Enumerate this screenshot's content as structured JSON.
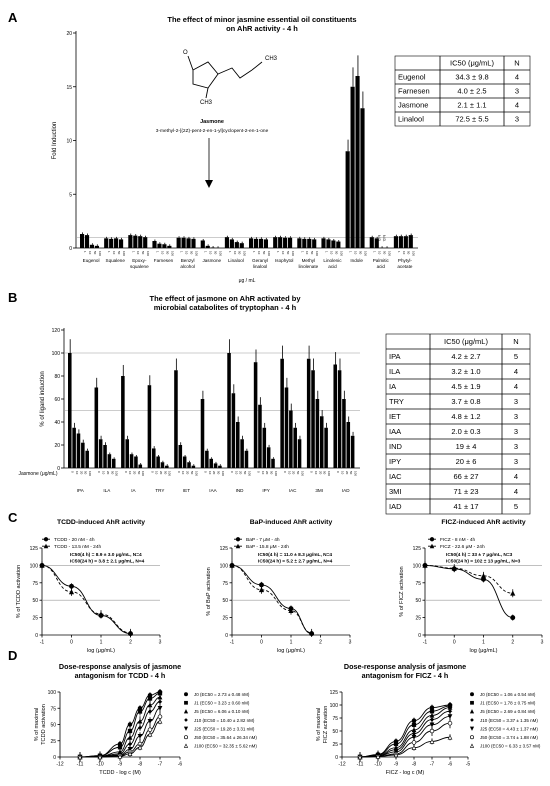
{
  "panels": {
    "A": "A",
    "B": "B",
    "C": "C",
    "D": "D"
  },
  "chart_data": [
    {
      "type": "bar",
      "panel": "A",
      "title": "The effect of minor jasmine essential oil constituents on AhR activity - 4 h",
      "title_lines": [
        "The effect of minor jasmine essential oil constituents",
        "on AhR activity - 4 h"
      ],
      "ylabel": "Fold Induction",
      "xlabel": "μg / mL",
      "ylim": [
        0,
        20
      ],
      "yticks": [
        0,
        5,
        10,
        15,
        20
      ],
      "reference_lines": [
        1.0
      ],
      "dose_labels": [
        "1",
        "10",
        "50",
        "100"
      ],
      "groups": [
        {
          "name": "Eugenol",
          "values": [
            1.3,
            1.2,
            0.3,
            0.2
          ]
        },
        {
          "name": "Squalene",
          "values": [
            0.9,
            0.85,
            0.9,
            0.8
          ]
        },
        {
          "name": "Epoxy-squalene",
          "values": [
            1.2,
            1.15,
            1.1,
            1.0
          ]
        },
        {
          "name": "Farnesen",
          "values": [
            0.65,
            0.4,
            0.35,
            0.2
          ]
        },
        {
          "name": "Benzyl alcohol",
          "values": [
            0.95,
            0.95,
            0.9,
            0.85
          ]
        },
        {
          "name": "Jasmone",
          "values": [
            0.7,
            0.2,
            0.05,
            0.02
          ]
        },
        {
          "name": "Linalool",
          "values": [
            1.0,
            0.8,
            0.55,
            0.45
          ]
        },
        {
          "name": "Geranyl linalool",
          "values": [
            0.9,
            0.85,
            0.85,
            0.8
          ]
        },
        {
          "name": "Isophytol",
          "values": [
            1.0,
            1.0,
            0.95,
            0.95
          ]
        },
        {
          "name": "Methyl linolenate",
          "values": [
            0.9,
            0.85,
            0.85,
            0.8
          ]
        },
        {
          "name": "Linolenic acid",
          "values": [
            0.9,
            0.8,
            0.7,
            0.6
          ]
        },
        {
          "name": "Indole",
          "values": [
            9.0,
            15.0,
            16.0,
            13.0
          ]
        },
        {
          "name": "Palmitic acid",
          "values": [
            1.0,
            0.9,
            0.02,
            0.02
          ]
        },
        {
          "name": "Phytyl-acetate",
          "values": [
            1.1,
            1.1,
            1.1,
            1.2
          ]
        }
      ],
      "annotations": [
        "N.D.",
        "N.D.",
        "Jasmone",
        "3-methyl-2-[(2Z)-pent-2-en-1-yl]cyclopent-2-en-1-one",
        "CH3",
        "O"
      ],
      "table": {
        "headers": [
          "",
          "IC50 (μg/mL)",
          "N"
        ],
        "rows": [
          [
            "Eugenol",
            "34.3 ± 9.8",
            "4"
          ],
          [
            "Farnesen",
            "4.0 ± 2.5",
            "3"
          ],
          [
            "Jasmone",
            "2.1 ± 1.1",
            "4"
          ],
          [
            "Linalool",
            "72.5 ± 5.5",
            "3"
          ]
        ]
      }
    },
    {
      "type": "bar",
      "panel": "B",
      "title": "The effect of jasmone on AhR activated by microbial catabolites of tryptophan - 4 h",
      "title_lines": [
        "The effect of jasmone on AhR activated by",
        "microbial catabolites of tryptophan - 4 h"
      ],
      "ylabel": "% of ligand induction",
      "xlabel": "Jasmone (μg/mL)",
      "ylim": [
        0,
        120
      ],
      "yticks": [
        0,
        20,
        40,
        60,
        80,
        100,
        120
      ],
      "reference_lines": [
        100,
        50
      ],
      "dose_labels": [
        "0",
        "10",
        "20",
        "50",
        "100"
      ],
      "groups": [
        {
          "name": "IPA",
          "values": [
            100,
            35,
            30,
            22,
            15
          ]
        },
        {
          "name": "ILA",
          "values": [
            70,
            25,
            20,
            12,
            8
          ]
        },
        {
          "name": "IA",
          "values": [
            80,
            25,
            12,
            10,
            3
          ]
        },
        {
          "name": "TRY",
          "values": [
            72,
            17,
            10,
            5,
            2
          ]
        },
        {
          "name": "IET",
          "values": [
            85,
            20,
            10,
            5,
            2
          ]
        },
        {
          "name": "IAA",
          "values": [
            60,
            15,
            8,
            4,
            2
          ]
        },
        {
          "name": "IND",
          "values": [
            100,
            65,
            40,
            25,
            15
          ]
        },
        {
          "name": "IPY",
          "values": [
            92,
            55,
            35,
            18,
            8
          ]
        },
        {
          "name": "IAC",
          "values": [
            95,
            70,
            50,
            35,
            25
          ]
        },
        {
          "name": "3MI",
          "values": [
            95,
            85,
            60,
            45,
            35
          ]
        },
        {
          "name": "IAD",
          "values": [
            90,
            85,
            60,
            40,
            28
          ]
        }
      ],
      "table": {
        "headers": [
          "",
          "IC50 (μg/mL)",
          "N"
        ],
        "rows": [
          [
            "IPA",
            "4.2 ± 2.7",
            "5"
          ],
          [
            "ILA",
            "3.2 ± 1.0",
            "4"
          ],
          [
            "IA",
            "4.5 ± 1.9",
            "4"
          ],
          [
            "TRY",
            "3.7 ± 0.8",
            "3"
          ],
          [
            "IET",
            "4.8 ± 1.2",
            "3"
          ],
          [
            "IAA",
            "2.0 ± 0.3",
            "3"
          ],
          [
            "IND",
            "19 ± 4",
            "3"
          ],
          [
            "IPY",
            "20 ± 6",
            "3"
          ],
          [
            "IAC",
            "66 ± 27",
            "4"
          ],
          [
            "3MI",
            "71 ± 23",
            "4"
          ],
          [
            "IAD",
            "41 ± 17",
            "5"
          ]
        ]
      }
    },
    {
      "type": "line",
      "panel": "C1",
      "title": "TCDD-induced AhR activity",
      "xlabel": "log (μg/mL)",
      "ylabel": "% of TCDD activation",
      "xlim": [
        -1,
        3
      ],
      "ylim": [
        0,
        125
      ],
      "xticks": [
        -1,
        0,
        1,
        2,
        3
      ],
      "yticks": [
        0,
        25,
        50,
        75,
        100,
        125
      ],
      "reference_lines": [
        100,
        50
      ],
      "legend": [
        "TCDD - 20 nM - 4h",
        "TCDD - 13.5 nM - 24h"
      ],
      "series": [
        {
          "name": "TCDD - 20 nM - 4h",
          "x": [
            -1,
            0,
            1,
            2
          ],
          "y": [
            100,
            70,
            28,
            2
          ]
        },
        {
          "name": "TCDD - 13.5 nM - 24h",
          "x": [
            -1,
            0,
            1,
            2
          ],
          "y": [
            100,
            62,
            30,
            3
          ]
        }
      ],
      "annotation": [
        "IC50(4 h) = 8.9 ± 3.0 μg/mL, N=4",
        "IC50(24 h) = 3.8 ± 2.1 μg/mL, N=4"
      ]
    },
    {
      "type": "line",
      "panel": "C2",
      "title": "BaP-induced AhR activity",
      "xlabel": "log (μg/mL)",
      "ylabel": "% of BaP activation",
      "xlim": [
        -1,
        3
      ],
      "ylim": [
        0,
        125
      ],
      "xticks": [
        -1,
        0,
        1,
        2,
        3
      ],
      "yticks": [
        0,
        25,
        50,
        75,
        100,
        125
      ],
      "reference_lines": [
        100,
        50
      ],
      "legend": [
        "BaP - 7 μM - 4h",
        "BaP - 15.8 μM - 24h"
      ],
      "series": [
        {
          "name": "BaP - 7 μM - 4h",
          "x": [
            -1,
            0,
            1,
            1.7
          ],
          "y": [
            100,
            72,
            38,
            2
          ]
        },
        {
          "name": "BaP - 15.8 μM - 24h",
          "x": [
            -1,
            0,
            1,
            1.7
          ],
          "y": [
            100,
            65,
            35,
            3
          ]
        }
      ],
      "annotation": [
        "IC50(4 h) = 11.0 ± 8.3 μg/mL, N=4",
        "IC50(24 h) = 5.2 ± 2.7 μg/mL, N=4"
      ]
    },
    {
      "type": "line",
      "panel": "C3",
      "title": "FICZ-induced AhR activity",
      "xlabel": "log (μg/mL)",
      "ylabel": "% of FICZ activation",
      "xlim": [
        -1,
        3
      ],
      "ylim": [
        0,
        125
      ],
      "xticks": [
        -1,
        0,
        1,
        2,
        3
      ],
      "yticks": [
        0,
        25,
        50,
        75,
        100,
        125
      ],
      "reference_lines": [
        100,
        50
      ],
      "legend": [
        "FICZ - 8 nM - 4h",
        "FICZ - 22.6 μM - 24h"
      ],
      "series": [
        {
          "name": "FICZ - 8 nM - 4h",
          "x": [
            -1,
            0,
            1,
            2
          ],
          "y": [
            100,
            95,
            80,
            25
          ]
        },
        {
          "name": "FICZ - 22.6 μM - 24h",
          "x": [
            -1,
            0,
            1,
            2
          ],
          "y": [
            100,
            96,
            85,
            60
          ]
        }
      ],
      "annotation": [
        "IC50(4 h) = 33 ± 7 μg/mL, N=3",
        "IC50(24 h) = 102 ± 13 μg/mL, N=3"
      ]
    },
    {
      "type": "line",
      "panel": "D1",
      "title": "Dose-response analysis of jasmone antagonism for TCDD - 4 h",
      "title_lines": [
        "Dose-response analysis of jasmone",
        "antagonism for TCDD - 4 h"
      ],
      "xlabel": "TCDD - log c (M)",
      "ylabel": "% of maximal TCDD activation",
      "ylabel_lines": [
        "% of maximal",
        "TCDD activation"
      ],
      "xlim": [
        -12,
        -6
      ],
      "ylim": [
        0,
        100
      ],
      "xticks": [
        -12,
        -11,
        -10,
        -9,
        -8,
        -7,
        -6
      ],
      "yticks": [
        0,
        25,
        50,
        75,
        100
      ],
      "legend": [
        "J0   (EC50 = 2.73 ± 0.48 nM)",
        "J1   (EC50 = 3.23 ± 0.60 nM)",
        "J5   (EC50 = 6.06 ± 0.10 nM)",
        "J10  (EC50 = 10.40 ± 2.82 nM)",
        "J25  (EC50 = 19.28 ± 3.31 nM)",
        "J50  (EC50 = 35.64 ± 26.34 nM)",
        "J100 (EC50 = 32.35 ± 5.62 nM)"
      ],
      "x": [
        -11,
        -10,
        -9,
        -8.5,
        -8,
        -7.5,
        -7
      ],
      "series": [
        {
          "name": "J0",
          "y": [
            0,
            2,
            20,
            50,
            75,
            95,
            100
          ]
        },
        {
          "name": "J1",
          "y": [
            0,
            2,
            15,
            40,
            70,
            90,
            98
          ]
        },
        {
          "name": "J5",
          "y": [
            0,
            1,
            8,
            30,
            55,
            80,
            92
          ]
        },
        {
          "name": "J10",
          "y": [
            0,
            1,
            5,
            20,
            45,
            70,
            85
          ]
        },
        {
          "name": "J25",
          "y": [
            0,
            1,
            3,
            12,
            32,
            55,
            75
          ]
        },
        {
          "name": "J50",
          "y": [
            0,
            0,
            2,
            8,
            20,
            42,
            62
          ]
        },
        {
          "name": "J100",
          "y": [
            0,
            0,
            1,
            5,
            15,
            35,
            55
          ]
        }
      ]
    },
    {
      "type": "line",
      "panel": "D2",
      "title": "Dose-response analysis of jasmone antagonism for FICZ - 4 h",
      "title_lines": [
        "Dose-response analysis of jasmone",
        "antagonism for FICZ - 4 h"
      ],
      "xlabel": "FICZ - log c (M)",
      "ylabel": "% of maximal FICZ activation",
      "ylabel_lines": [
        "% of maximal",
        "FICZ activation"
      ],
      "xlim": [
        -12,
        -5
      ],
      "ylim": [
        0,
        125
      ],
      "xticks": [
        -12,
        -11,
        -10,
        -9,
        -8,
        -7,
        -6,
        -5
      ],
      "yticks": [
        0,
        25,
        50,
        75,
        100,
        125
      ],
      "legend": [
        "J0   (EC50 = 1.06 ± 0.54 nM)",
        "J1   (EC50 = 1.78 ± 0.75 nM)",
        "J5   (EC50 = 2.69 ± 0.84 nM)",
        "J10  (EC50 = 3.37 ± 1.35 nM)",
        "J25  (EC50 = 4.43 ± 1.37 nM)",
        "J50  (EC50 = 3.74 ± 1.88 nM)",
        "J100 (EC50 = 6.33 ± 3.57 nM)"
      ],
      "x": [
        -11,
        -10,
        -9,
        -8,
        -7,
        -6
      ],
      "series": [
        {
          "name": "J0",
          "y": [
            0,
            5,
            30,
            70,
            95,
            100
          ]
        },
        {
          "name": "J1",
          "y": [
            0,
            4,
            25,
            62,
            88,
            98
          ]
        },
        {
          "name": "J5",
          "y": [
            0,
            3,
            18,
            52,
            80,
            95
          ]
        },
        {
          "name": "J10",
          "y": [
            0,
            2,
            14,
            45,
            72,
            88
          ]
        },
        {
          "name": "J25",
          "y": [
            0,
            2,
            10,
            38,
            62,
            78
          ]
        },
        {
          "name": "J50",
          "y": [
            0,
            1,
            6,
            28,
            50,
            65
          ]
        },
        {
          "name": "J100",
          "y": [
            0,
            1,
            4,
            18,
            30,
            38
          ]
        }
      ]
    }
  ]
}
